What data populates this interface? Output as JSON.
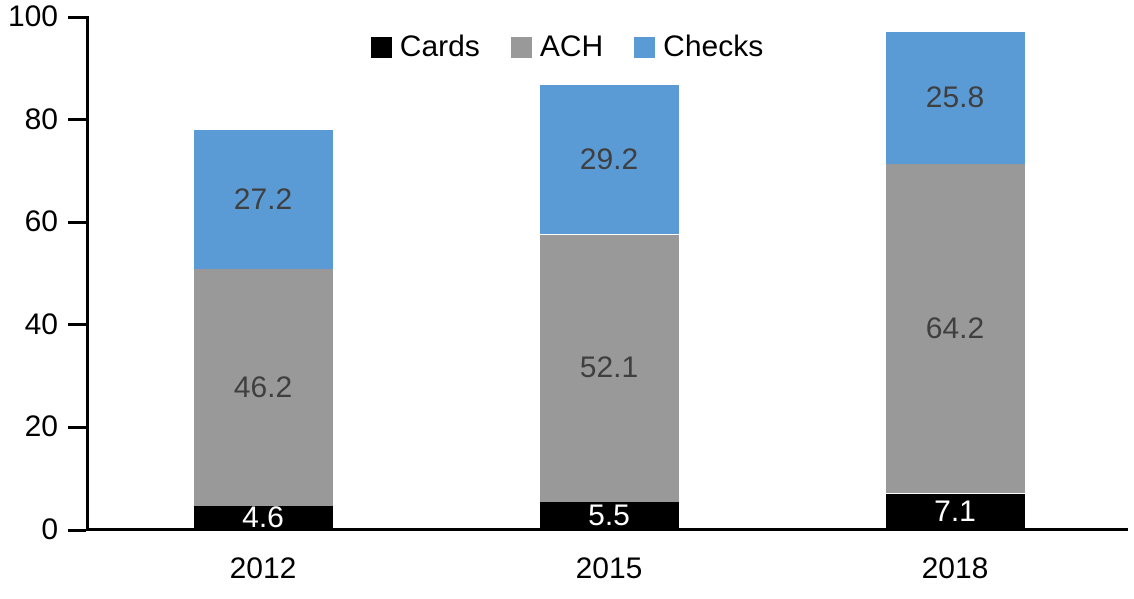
{
  "chart_data": {
    "type": "bar",
    "stacked": true,
    "title": "",
    "categories": [
      "2012",
      "2015",
      "2018"
    ],
    "series": [
      {
        "name": "Cards",
        "color": "#000000",
        "label_color": "#FFFFFF",
        "values": [
          4.6,
          5.5,
          7.1
        ]
      },
      {
        "name": "ACH",
        "color": "#999999",
        "label_color": "#3F3F3F",
        "values": [
          46.2,
          52.1,
          64.2
        ]
      },
      {
        "name": "Checks",
        "color": "#5B9BD5",
        "label_color": "#3F3F3F",
        "values": [
          27.2,
          29.2,
          25.8
        ]
      }
    ],
    "y_axis": {
      "min": 0,
      "max": 100,
      "tick_interval": 20,
      "ticks": [
        0,
        20,
        40,
        60,
        80,
        100
      ]
    },
    "legend": {
      "position": "top-center",
      "entries": [
        "Cards",
        "ACH",
        "Checks"
      ]
    },
    "grid": false,
    "data_label_position": "center",
    "axis_color": "#000000",
    "background_color": "#FFFFFF"
  }
}
